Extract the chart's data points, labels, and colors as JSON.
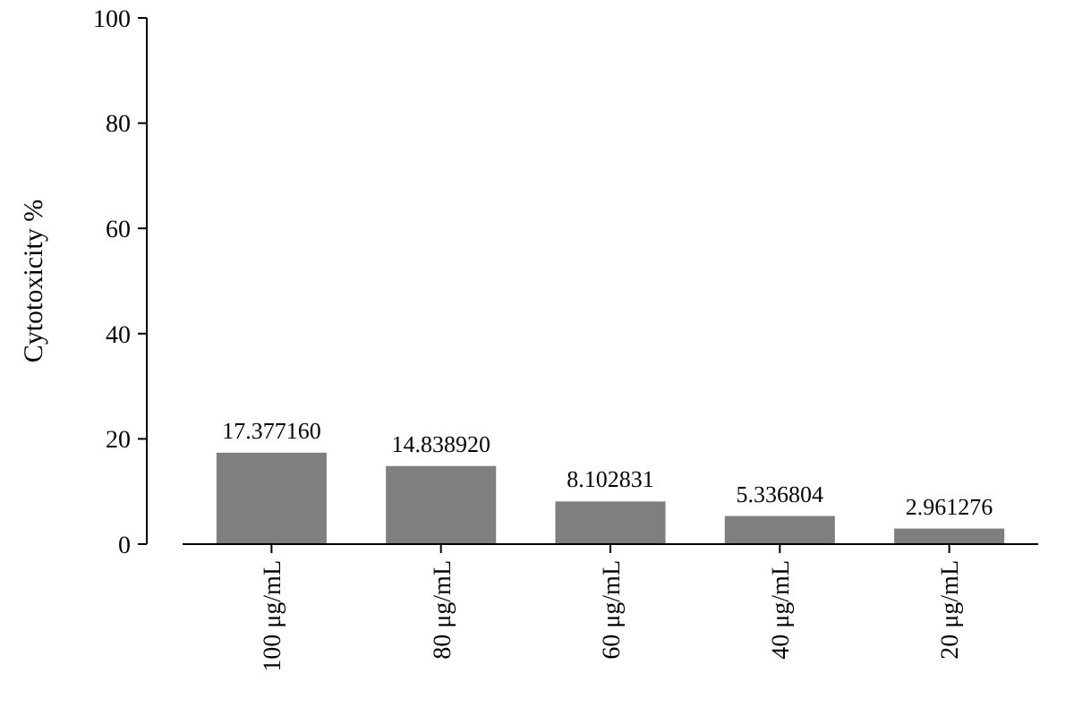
{
  "chart_data": {
    "type": "bar",
    "ylabel": "Cytotoxicity %",
    "categories": [
      "100 μg/mL",
      "80 μg/mL",
      "60 μg/mL",
      "40 μg/mL",
      "20 μg/mL"
    ],
    "values": [
      17.37716,
      14.83892,
      8.102831,
      5.336804,
      2.961276
    ],
    "value_labels": [
      "17.377160",
      "14.838920",
      "8.102831",
      "5.336804",
      "2.961276"
    ],
    "color": "#7f7f81",
    "ylim": [
      0,
      100
    ],
    "yticks": [
      0,
      20,
      40,
      60,
      80,
      100
    ],
    "grid": false
  }
}
